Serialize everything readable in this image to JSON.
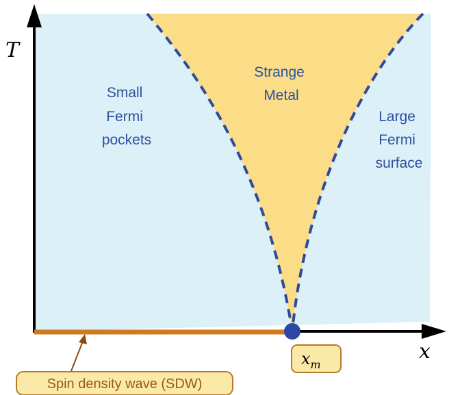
{
  "axes": {
    "y_label": "T",
    "x_label": "x"
  },
  "regions": {
    "small_fermi": [
      "Small",
      "Fermi",
      "pockets"
    ],
    "strange_metal": [
      "Strange",
      "Metal"
    ],
    "large_fermi": [
      "Large",
      "Fermi",
      "surface"
    ]
  },
  "critical_point": {
    "label_main": "x",
    "label_sub": "m"
  },
  "sdw": {
    "label": "Spin density wave (SDW)"
  },
  "colors": {
    "background_region": "#dcf0f7",
    "strange_metal": "#fbdc87",
    "boundary": "#2f4a9a",
    "sdw_line": "#cf7a1e",
    "critical_point": "#2d47a6",
    "tag_fill": "#fbe9a8",
    "tag_stroke": "#b87a2a"
  }
}
